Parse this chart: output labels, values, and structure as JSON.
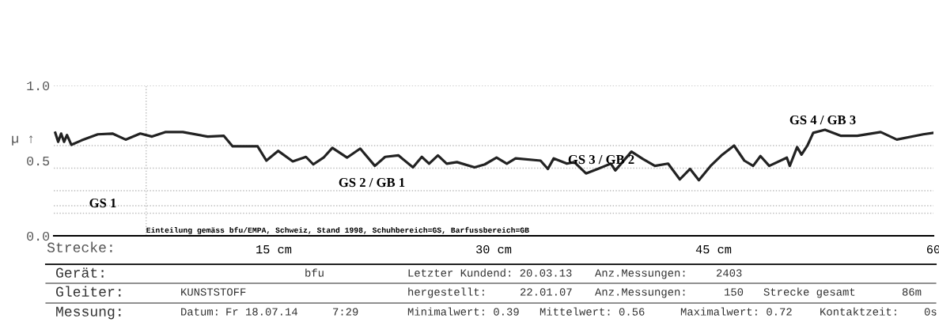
{
  "chart_data": {
    "type": "line",
    "ylabel": "µ ↑",
    "xlabel": "Strecke:",
    "x": [
      0.1,
      0.3,
      0.5,
      0.7,
      0.9,
      1.2,
      1.9,
      3.0,
      4.0,
      4.9,
      5.9,
      6.7,
      7.6,
      8.8,
      10.5,
      11.6,
      12.2,
      13.9,
      14.5,
      15.3,
      16.3,
      17.2,
      17.7,
      18.4,
      19.0,
      20.0,
      20.9,
      21.9,
      22.6,
      23.5,
      24.5,
      25.1,
      25.6,
      26.2,
      26.8,
      27.5,
      28.7,
      29.4,
      30.2,
      30.9,
      31.5,
      33.2,
      33.7,
      34.1,
      35.0,
      35.5,
      36.3,
      37.1,
      38.0,
      38.3,
      39.4,
      40.2,
      41.0,
      41.9,
      42.7,
      43.4,
      44.0,
      44.8,
      45.6,
      46.4,
      47.1,
      47.7,
      48.2,
      48.8,
      50.0,
      50.2,
      50.7,
      51.0,
      51.4,
      51.8,
      52.6,
      53.7,
      54.8,
      56.4,
      57.5,
      59.3,
      60.0
    ],
    "series": [
      {
        "color": "#222222",
        "values": [
          0.685,
          0.625,
          0.68,
          0.625,
          0.67,
          0.605,
          0.635,
          0.675,
          0.68,
          0.64,
          0.68,
          0.66,
          0.69,
          0.69,
          0.66,
          0.665,
          0.595,
          0.595,
          0.5,
          0.565,
          0.495,
          0.525,
          0.475,
          0.52,
          0.585,
          0.52,
          0.58,
          0.465,
          0.525,
          0.535,
          0.455,
          0.525,
          0.48,
          0.535,
          0.48,
          0.49,
          0.455,
          0.475,
          0.52,
          0.48,
          0.515,
          0.5,
          0.445,
          0.515,
          0.48,
          0.49,
          0.415,
          0.445,
          0.48,
          0.435,
          0.56,
          0.51,
          0.465,
          0.48,
          0.375,
          0.445,
          0.37,
          0.465,
          0.54,
          0.6,
          0.5,
          0.465,
          0.53,
          0.465,
          0.52,
          0.465,
          0.59,
          0.54,
          0.6,
          0.685,
          0.705,
          0.665,
          0.665,
          0.69,
          0.64,
          0.675,
          0.685
        ]
      }
    ],
    "xlim": [
      0,
      60
    ],
    "xticks": [
      {
        "value": 15,
        "label": "15 cm"
      },
      {
        "value": 30,
        "label": "30 cm"
      },
      {
        "value": 45,
        "label": "45 cm"
      },
      60
    ],
    "ylim": [
      0,
      1
    ],
    "yticks": [
      {
        "value": 0,
        "label": "0.0"
      },
      0.5,
      {
        "value": 1,
        "label": "1.0"
      }
    ],
    "grid": false,
    "legend": false,
    "marker": "none",
    "line_style": "solid",
    "ref_lines": [
      {
        "axis": "y",
        "value": 1.0,
        "color": "#bbbbbb",
        "line_style": "dotted"
      },
      {
        "axis": "y",
        "value": 0.6,
        "color": "#bbbbbb",
        "line_style": "dotted"
      },
      {
        "axis": "y",
        "value": 0.45,
        "color": "#bbbbbb",
        "line_style": "dotted"
      },
      {
        "axis": "y",
        "value": 0.3,
        "color": "#bbbbbb",
        "line_style": "dotted"
      },
      {
        "axis": "y",
        "value": 0.2,
        "color": "#bbbbbb",
        "line_style": "dotted"
      },
      {
        "axis": "y",
        "value": 0.15,
        "color": "#bbbbbb",
        "line_style": "dotted"
      },
      {
        "axis": "x",
        "value": 6.3,
        "color": "#bbbbbb",
        "line_style": "dotted"
      }
    ],
    "annotations": [
      "GS 1",
      "GS 2 / GB 1",
      "GS 3 / GB 2",
      "GS 4 / GB 3",
      "Einteilung gemäss bfu/EMPA, Schweiz, Stand 1998, Schuhbereich=GS, Barfussbereich=GB",
      "Gerät:",
      "bfu",
      "Letzter Kundend: 20.03.13",
      "Anz.Messungen:",
      "2403",
      "Gleiter:",
      "KUNSTSTOFF",
      "hergestellt:",
      "22.01.07",
      "Anz.Messungen:",
      "150",
      "Strecke gesamt",
      "86m",
      "Messung:",
      "Datum:",
      "Fr 18.07.14",
      "7:29",
      "Minimalwert: 0.39",
      "Mittelwert: 0.56",
      "Maximalwert: 0.72",
      "Kontaktzeit:",
      "0s"
    ]
  }
}
